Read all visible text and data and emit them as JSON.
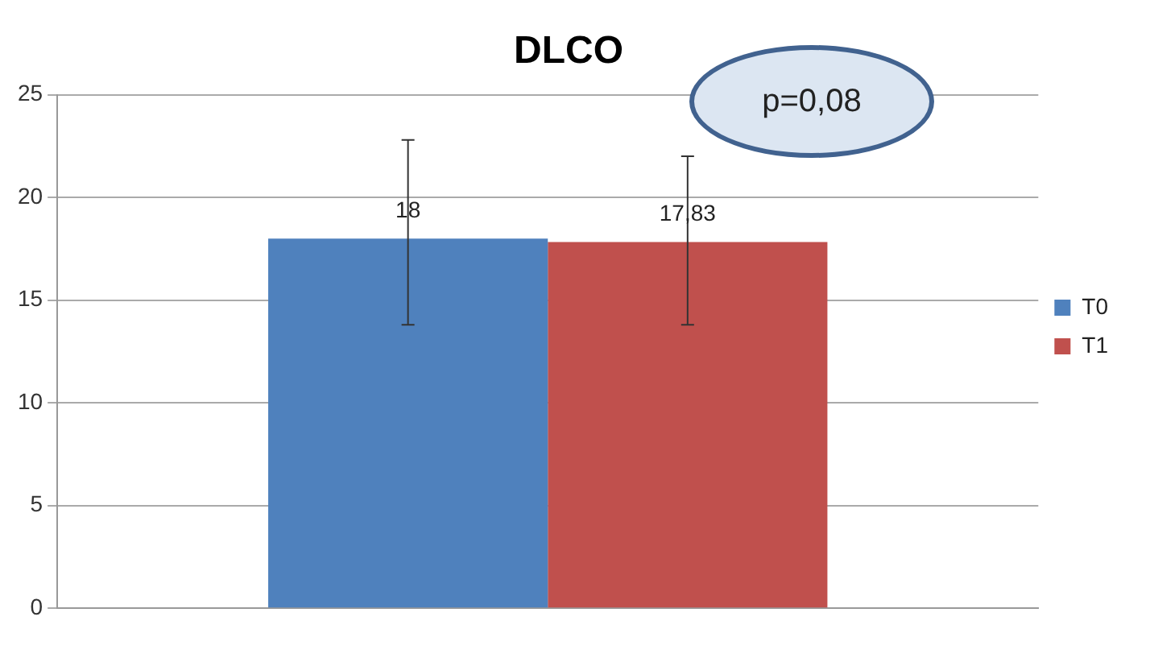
{
  "chart_data": {
    "type": "bar",
    "title": "DLCO",
    "categories": [
      null
    ],
    "series": [
      {
        "name": "T0",
        "color": "#4f81bd",
        "values": [
          18
        ],
        "errors": [
          [
            13.8,
            22.8
          ]
        ],
        "value_labels": [
          "18"
        ]
      },
      {
        "name": "T1",
        "color": "#c0504d",
        "values": [
          17.83
        ],
        "errors": [
          [
            13.8,
            22.0
          ]
        ],
        "value_labels": [
          "17,83"
        ]
      }
    ],
    "ylim": [
      0,
      25
    ],
    "yticks": [
      0,
      5,
      10,
      15,
      20,
      25
    ],
    "grid": "y",
    "legend": "right",
    "annotations": [
      "p=0,08"
    ]
  }
}
